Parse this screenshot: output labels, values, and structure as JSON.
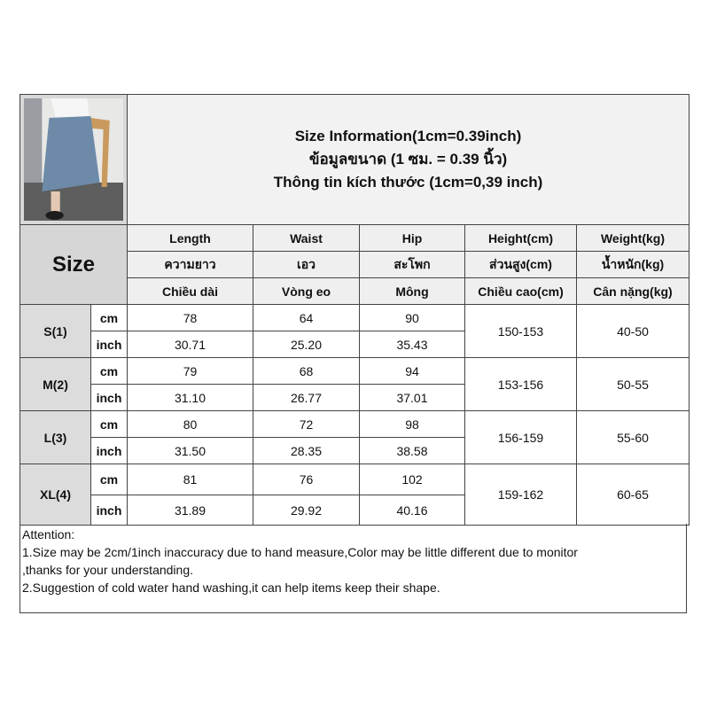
{
  "title": {
    "line_en": "Size Information(1cm=0.39inch)",
    "line_th": "ข้อมูลขนาด (1 ซม. = 0.39 นิ้ว)",
    "line_vi": "Thông tin kích thước (1cm=0,39 inch)"
  },
  "size_header": "Size",
  "columns": [
    {
      "en": "Length",
      "th": "ความยาว",
      "vi": "Chiều dài"
    },
    {
      "en": "Waist",
      "th": "เอว",
      "vi": "Vòng eo"
    },
    {
      "en": "Hip",
      "th": "สะโพก",
      "vi": "Mông"
    },
    {
      "en": "Height(cm)",
      "th": "ส่วนสูง(cm)",
      "vi": "Chiều cao(cm)"
    },
    {
      "en": "Weight(kg)",
      "th": "น้ำหนัก(kg)",
      "vi": "Cân nặng(kg)"
    }
  ],
  "units": {
    "cm": "cm",
    "inch": "inch"
  },
  "sizes": [
    {
      "size": "S(1)",
      "cm": [
        "78",
        "64",
        "90"
      ],
      "inch": [
        "30.71",
        "25.20",
        "35.43"
      ],
      "height": "150-153",
      "weight": "40-50"
    },
    {
      "size": "M(2)",
      "cm": [
        "79",
        "68",
        "94"
      ],
      "inch": [
        "31.10",
        "26.77",
        "37.01"
      ],
      "height": "153-156",
      "weight": "50-55"
    },
    {
      "size": "L(3)",
      "cm": [
        "80",
        "72",
        "98"
      ],
      "inch": [
        "31.50",
        "28.35",
        "38.58"
      ],
      "height": "156-159",
      "weight": "55-60"
    },
    {
      "size": "XL(4)",
      "cm": [
        "81",
        "76",
        "102"
      ],
      "inch": [
        "31.89",
        "29.92",
        "40.16"
      ],
      "height": "159-162",
      "weight": "60-65"
    }
  ],
  "attention": {
    "heading": "Attention:",
    "line1": "1.Size may be 2cm/1inch inaccuracy due to hand measure,Color may be little different due to monitor",
    "line1b": ",thanks for your understanding.",
    "line2": "2.Suggestion of cold water hand washing,it can help items keep their shape."
  }
}
